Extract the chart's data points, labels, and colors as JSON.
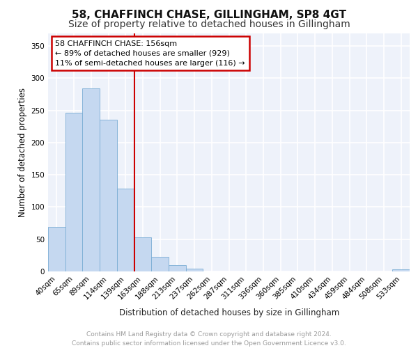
{
  "title1": "58, CHAFFINCH CHASE, GILLINGHAM, SP8 4GT",
  "title2": "Size of property relative to detached houses in Gillingham",
  "xlabel": "Distribution of detached houses by size in Gillingham",
  "ylabel": "Number of detached properties",
  "categories": [
    "40sqm",
    "65sqm",
    "89sqm",
    "114sqm",
    "139sqm",
    "163sqm",
    "188sqm",
    "213sqm",
    "237sqm",
    "262sqm",
    "287sqm",
    "311sqm",
    "336sqm",
    "360sqm",
    "385sqm",
    "410sqm",
    "434sqm",
    "459sqm",
    "484sqm",
    "508sqm",
    "533sqm"
  ],
  "values": [
    69,
    246,
    284,
    236,
    129,
    53,
    23,
    10,
    4,
    0,
    0,
    0,
    0,
    0,
    0,
    0,
    0,
    0,
    0,
    0,
    3
  ],
  "bar_color": "#c5d8f0",
  "bar_edge_color": "#7aadd4",
  "vline_color": "#cc0000",
  "annotation_text": "58 CHAFFINCH CHASE: 156sqm\n← 89% of detached houses are smaller (929)\n11% of semi-detached houses are larger (116) →",
  "annotation_box_color": "#ffffff",
  "annotation_box_edge_color": "#cc0000",
  "ylim": [
    0,
    370
  ],
  "yticks": [
    0,
    50,
    100,
    150,
    200,
    250,
    300,
    350
  ],
  "footer_text": "Contains HM Land Registry data © Crown copyright and database right 2024.\nContains public sector information licensed under the Open Government Licence v3.0.",
  "bg_color": "#eef2fa",
  "grid_color": "#ffffff",
  "title_fontsize": 11,
  "subtitle_fontsize": 10,
  "label_fontsize": 8.5,
  "tick_fontsize": 7.5,
  "footer_fontsize": 6.5,
  "vline_index": 5
}
